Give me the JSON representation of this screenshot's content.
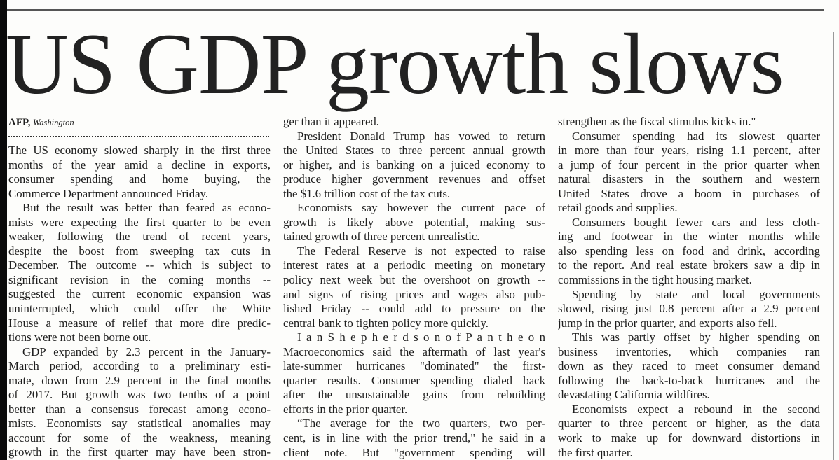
{
  "headline": "US GDP growth slows",
  "byline": {
    "agency": "AFP,",
    "place": "Washington"
  },
  "columns": [
    {
      "paragraphs": [
        {
          "indent": false,
          "lines": [
            "The US economy slowed sharply in the first three",
            "months of the year amid a decline in exports,",
            "consumer spending and home buying, the",
            "Commerce Department announced Friday."
          ]
        },
        {
          "indent": true,
          "lines": [
            "But the result was better than feared as econo-",
            "mists were expecting the first quarter to be even",
            "weaker, following the trend of recent years,",
            "despite the boost from sweeping tax cuts in",
            "December. The outcome -- which is subject to",
            "significant revision in the coming months --",
            "suggested the current economic expansion was",
            "uninterrupted, which could offer the White",
            "House a measure of relief that more dire predic-",
            "tions were not been borne out."
          ]
        },
        {
          "indent": true,
          "cont": true,
          "lines": [
            "GDP expanded by 2.3 percent in the January-",
            "March period, according to a preliminary esti-",
            "mate, down from 2.9 percent in the final months",
            "of 2017. But growth was two tenths of a point",
            "better than a consensus forecast among econo-",
            "mists. Economists say statistical anomalies may",
            "account for some of the weakness, meaning",
            "growth in the first quarter may have been stron-"
          ]
        }
      ]
    },
    {
      "paragraphs": [
        {
          "indent": false,
          "lines": [
            "ger than it appeared."
          ]
        },
        {
          "indent": true,
          "lines": [
            "President Donald Trump has vowed to return",
            "the United States to three percent annual growth",
            "or higher, and is banking on a juiced economy to",
            "produce higher government revenues and offset",
            "the $1.6 trillion cost of the tax cuts."
          ]
        },
        {
          "indent": true,
          "lines": [
            "Economists say however the current pace of",
            "growth is likely above potential, making sus-",
            "tained growth of three percent unrealistic."
          ]
        },
        {
          "indent": true,
          "lines": [
            "The Federal Reserve is not expected to raise",
            "interest rates at a periodic meeting on monetary",
            "policy next week but the overshoot on growth --",
            "and signs of rising prices and wages also pub-",
            "lished Friday -- could add to pressure on the",
            "central bank to tighten policy more quickly."
          ]
        },
        {
          "indent": true,
          "lines": [
            "I a n   S h e p h e r d s o n   o f   P a n t h e o n",
            "Macroeconomics said the aftermath of last year's",
            "late-summer hurricanes \"dominated\" the first-",
            "quarter results. Consumer spending dialed back",
            "after the unsustainable gains from rebuilding",
            "efforts in the prior quarter."
          ]
        },
        {
          "indent": true,
          "cont": true,
          "lines": [
            "“The average for the two quarters, two per-",
            "cent, is in line with the prior trend,\" he said in a",
            "client note. But \"government spending will"
          ]
        }
      ]
    },
    {
      "paragraphs": [
        {
          "indent": false,
          "lines": [
            "strengthen as the fiscal stimulus kicks in.\""
          ]
        },
        {
          "indent": true,
          "lines": [
            "Consumer spending had its slowest quarter",
            "in more than four years, rising 1.1 percent, after",
            "a jump of four percent in the prior quarter when",
            "natural disasters in the southern and western",
            "United States drove a boom in purchases of",
            "retail goods and supplies."
          ]
        },
        {
          "indent": true,
          "lines": [
            "Consumers bought fewer cars and less cloth-",
            "ing and footwear in the winter months while",
            "also spending less on food and drink, according",
            "to the report. And real estate brokers saw a dip in",
            "commissions in the tight housing market."
          ]
        },
        {
          "indent": true,
          "lines": [
            "Spending by state and local governments",
            "slowed, rising just 0.8 percent after a 2.9 percent",
            "jump in the prior quarter, and exports also fell."
          ]
        },
        {
          "indent": true,
          "lines": [
            "This was partly offset by higher spending on",
            "business inventories, which companies ran",
            "down as they raced to meet consumer demand",
            "following the back-to-back hurricanes and the",
            "devastating California wildfires."
          ]
        },
        {
          "indent": true,
          "lines": [
            "Economists expect a rebound in the second",
            "quarter to three percent or higher, as the data",
            "work to make up for downward distortions in",
            "the first quarter."
          ]
        }
      ]
    }
  ]
}
